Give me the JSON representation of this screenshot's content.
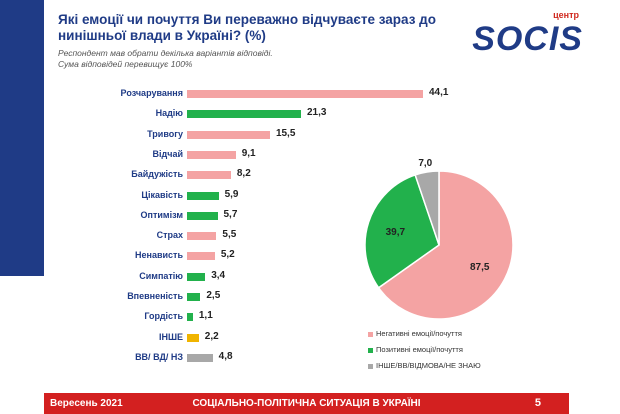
{
  "slide": {
    "title": "Які емоції чи почуття Ви переважно відчуваєте зараз до нинішньої влади в Україні? (%)",
    "subtitle_line1": "Респондент мав обрати декілька варіантів відповіді.",
    "subtitle_line2": "Сума відповідей перевищує 100%",
    "logo_center": "центр",
    "logo_brand": "SOCIS"
  },
  "colors": {
    "negative": "#f4a3a3",
    "positive": "#22b14c",
    "other": "#f0b400",
    "none": "#a8a8a8",
    "navy": "#1f3b86",
    "red": "#d32020"
  },
  "chart_data": [
    {
      "type": "bar",
      "orientation": "horizontal",
      "categories": [
        "Розчарування",
        "Надію",
        "Тривогу",
        "Відчай",
        "Байдужість",
        "Цікавість",
        "Оптимізм",
        "Страх",
        "Ненависть",
        "Симпатію",
        "Впевненість",
        "Гордість",
        "ІНШЕ",
        "ВВ/ ВД/ НЗ"
      ],
      "values": [
        44.1,
        21.3,
        15.5,
        9.1,
        8.2,
        5.9,
        5.7,
        5.5,
        5.2,
        3.4,
        2.5,
        1.1,
        2.2,
        4.8
      ],
      "value_labels": [
        "44,1",
        "21,3",
        "15,5",
        "9,1",
        "8,2",
        "5,9",
        "5,7",
        "5,5",
        "5,2",
        "3,4",
        "2,5",
        "1,1",
        "2,2",
        "4,8"
      ],
      "bar_groups": [
        "negative",
        "positive",
        "negative",
        "negative",
        "negative",
        "positive",
        "positive",
        "negative",
        "negative",
        "positive",
        "positive",
        "positive",
        "other",
        "none"
      ],
      "xlim": [
        0,
        44.1
      ]
    },
    {
      "type": "pie",
      "slices": [
        {
          "label": "Негативні емоції/почуття",
          "value": 87.5,
          "value_label": "87,5",
          "group": "negative"
        },
        {
          "label": "Позитивні емоції/почуття",
          "value": 39.7,
          "value_label": "39,7",
          "group": "positive"
        },
        {
          "label": "ІНШЕ/ВВ/ВІДМОВА/НЕ ЗНАЮ",
          "value": 7.0,
          "value_label": "7,0",
          "group": "none"
        }
      ],
      "legend_position": "bottom"
    }
  ],
  "footer": {
    "date": "Вересень 2021",
    "title": "СОЦІАЛЬНО-ПОЛІТИЧНА СИТУАЦІЯ В УКРАЇНІ",
    "page": "5"
  }
}
